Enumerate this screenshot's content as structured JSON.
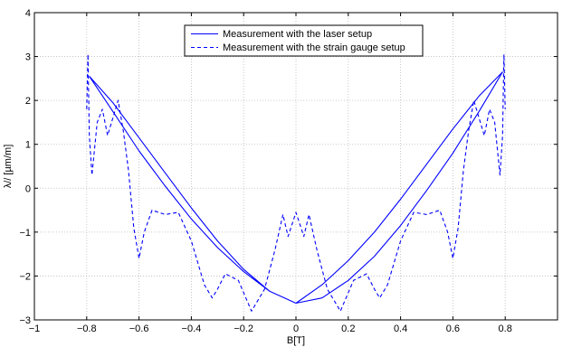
{
  "chart_data": {
    "type": "line",
    "xlabel": "B[T]",
    "ylabel": "λ// [µm/m]",
    "xlim": [
      -1,
      1
    ],
    "ylim": [
      -3,
      4
    ],
    "x_ticks": [
      -1,
      -0.8,
      -0.6,
      -0.4,
      -0.2,
      0,
      0.2,
      0.4,
      0.6,
      0.8
    ],
    "x_tick_labels": [
      "−1",
      "−0.8",
      "−0.6",
      "−0.4",
      "−0.2",
      "0",
      "0.2",
      "0.4",
      "0.6",
      "0.8"
    ],
    "y_ticks": [
      -3,
      -2,
      -1,
      0,
      1,
      2,
      3,
      4
    ],
    "y_tick_labels": [
      "−3",
      "−2",
      "−1",
      "0",
      "1",
      "2",
      "3",
      "4"
    ],
    "grid": true,
    "legend_position": "top-center",
    "colors": {
      "series": "#0000ff",
      "grid": "#bbbbbb",
      "axes": "#000000"
    },
    "series": [
      {
        "name": "Measurement with the laser setup",
        "style": "solid",
        "x": [
          -0.79,
          -0.7,
          -0.6,
          -0.5,
          -0.4,
          -0.3,
          -0.2,
          -0.1,
          0,
          0.1,
          0.2,
          0.3,
          0.4,
          0.5,
          0.6,
          0.7,
          0.79,
          0.7,
          0.6,
          0.5,
          0.4,
          0.3,
          0.2,
          0.1,
          0,
          -0.1,
          -0.2,
          -0.3,
          -0.4,
          -0.5,
          -0.6,
          -0.7,
          -0.79
        ],
        "y": [
          2.55,
          1.95,
          1.15,
          0.35,
          -0.45,
          -1.2,
          -1.85,
          -2.35,
          -2.62,
          -2.5,
          -2.1,
          -1.55,
          -0.85,
          -0.05,
          0.8,
          1.75,
          2.65,
          2.1,
          1.35,
          0.55,
          -0.25,
          -1.0,
          -1.65,
          -2.2,
          -2.62,
          -2.35,
          -1.9,
          -1.35,
          -0.7,
          0.05,
          0.85,
          1.75,
          2.55
        ]
      },
      {
        "name": "Measurement with the strain gauge setup",
        "style": "dashed",
        "x": [
          -0.8,
          -0.795,
          -0.79,
          -0.78,
          -0.76,
          -0.74,
          -0.72,
          -0.7,
          -0.68,
          -0.66,
          -0.64,
          -0.62,
          -0.6,
          -0.58,
          -0.55,
          -0.5,
          -0.45,
          -0.4,
          -0.35,
          -0.32,
          -0.3,
          -0.27,
          -0.22,
          -0.17,
          -0.12,
          -0.08,
          -0.05,
          -0.03,
          0,
          0.03,
          0.05,
          0.08,
          0.12,
          0.17,
          0.22,
          0.27,
          0.3,
          0.32,
          0.35,
          0.4,
          0.45,
          0.5,
          0.55,
          0.58,
          0.6,
          0.62,
          0.64,
          0.66,
          0.68,
          0.7,
          0.72,
          0.74,
          0.76,
          0.78,
          0.79,
          0.795,
          0.8
        ],
        "y": [
          1.8,
          3.05,
          1.2,
          0.3,
          1.5,
          1.8,
          1.2,
          1.6,
          2.0,
          1.3,
          0.4,
          -0.9,
          -1.6,
          -1.0,
          -0.5,
          -0.6,
          -0.55,
          -1.2,
          -2.2,
          -2.5,
          -2.3,
          -1.95,
          -2.1,
          -2.8,
          -2.3,
          -1.4,
          -0.6,
          -1.1,
          -0.55,
          -1.1,
          -0.6,
          -1.4,
          -2.3,
          -2.8,
          -2.1,
          -1.95,
          -2.3,
          -2.5,
          -2.2,
          -1.2,
          -0.55,
          -0.6,
          -0.5,
          -1.0,
          -1.6,
          -0.9,
          0.4,
          1.3,
          2.0,
          1.6,
          1.2,
          1.8,
          1.5,
          0.3,
          1.2,
          3.05,
          1.8
        ]
      }
    ]
  }
}
